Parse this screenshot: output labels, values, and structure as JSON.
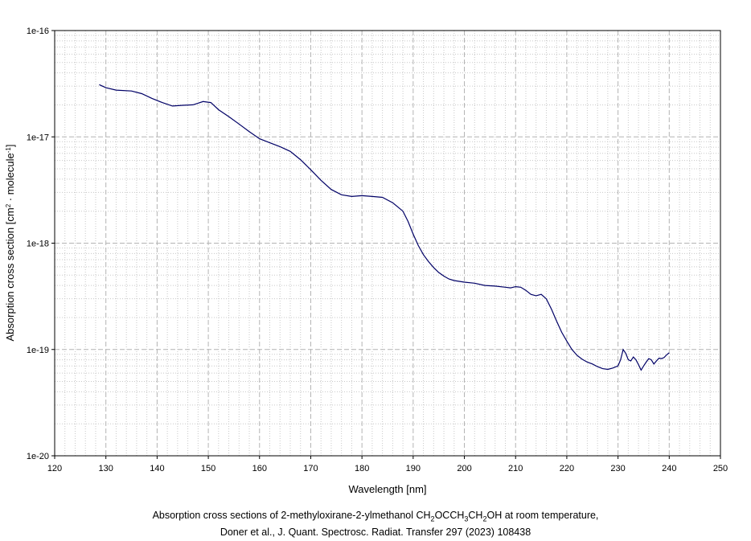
{
  "chart_data": {
    "type": "line",
    "xlabel": "Wavelength [nm]",
    "ylabel": {
      "prefix": "Absorption cross section [cm",
      "sup1": "2",
      "mid": " · molecule",
      "sup2": "-1",
      "suffix": "]"
    },
    "xlim": [
      120,
      250
    ],
    "ylim": [
      1e-20,
      1e-16
    ],
    "yscale": "log",
    "grid": true,
    "x_ticks": [
      "120",
      "130",
      "140",
      "150",
      "160",
      "170",
      "180",
      "190",
      "200",
      "210",
      "220",
      "230",
      "240",
      "250"
    ],
    "y_ticks": [
      "1e-20",
      "1e-19",
      "1e-18",
      "1e-17",
      "1e-16"
    ],
    "line_color": "#000066",
    "series": [
      {
        "x": [
          128.7,
          130,
          132,
          135,
          137,
          139,
          141,
          143,
          145,
          147,
          149,
          150.5,
          152,
          154,
          156,
          158,
          160,
          162,
          164,
          166,
          168,
          170,
          172,
          174,
          176,
          178,
          180,
          182,
          184,
          186,
          188,
          189,
          190,
          191,
          192,
          193,
          194,
          195,
          196,
          197,
          198,
          200,
          202,
          204,
          206,
          208,
          209,
          210,
          211,
          212,
          213,
          214,
          215,
          216,
          217,
          218,
          219,
          220,
          221,
          222,
          223,
          224,
          225,
          226,
          227,
          228,
          229,
          230,
          230.5,
          231,
          231.5,
          232,
          232.5,
          233,
          233.5,
          234,
          234.5,
          235,
          235.5,
          236,
          236.5,
          237,
          237.5,
          238,
          238.5,
          239,
          239.5,
          240
        ],
        "y": [
          3.1e-17,
          2.9e-17,
          2.75e-17,
          2.7e-17,
          2.55e-17,
          2.3e-17,
          2.1e-17,
          1.95e-17,
          1.98e-17,
          2e-17,
          2.15e-17,
          2.1e-17,
          1.8e-17,
          1.55e-17,
          1.32e-17,
          1.12e-17,
          9.6e-18,
          8.8e-18,
          8.1e-18,
          7.3e-18,
          6.1e-18,
          4.9e-18,
          3.9e-18,
          3.2e-18,
          2.85e-18,
          2.75e-18,
          2.8e-18,
          2.75e-18,
          2.7e-18,
          2.4e-18,
          2e-18,
          1.6e-18,
          1.22e-18,
          9.5e-19,
          7.8e-19,
          6.7e-19,
          5.9e-19,
          5.3e-19,
          4.9e-19,
          4.6e-19,
          4.45e-19,
          4.3e-19,
          4.2e-19,
          4e-19,
          3.95e-19,
          3.85e-19,
          3.8e-19,
          3.9e-19,
          3.85e-19,
          3.6e-19,
          3.3e-19,
          3.2e-19,
          3.3e-19,
          3e-19,
          2.4e-19,
          1.85e-19,
          1.45e-19,
          1.2e-19,
          1e-19,
          8.8e-20,
          8.1e-20,
          7.6e-20,
          7.3e-20,
          6.9e-20,
          6.6e-20,
          6.5e-20,
          6.7e-20,
          7e-20,
          8e-20,
          1e-19,
          9.2e-20,
          8e-20,
          7.8e-20,
          8.5e-20,
          8e-20,
          7.2e-20,
          6.4e-20,
          7e-20,
          7.6e-20,
          8.2e-20,
          8e-20,
          7.3e-20,
          7.8e-20,
          8.3e-20,
          8.2e-20,
          8.4e-20,
          8.9e-20,
          9.3e-20
        ]
      }
    ]
  },
  "caption": {
    "line1_prefix": "Absorption cross sections of 2-methyloxirane-2-ylmethanol CH",
    "line1_sub1": "2",
    "line1_mid1": "OCCH",
    "line1_sub2": "3",
    "line1_mid2": "CH",
    "line1_sub3": "2",
    "line1_suffix": "OH at room temperature,",
    "line2": "Doner et al., J. Quant. Spectrosc. Radiat. Transfer 297 (2023) 108438"
  }
}
